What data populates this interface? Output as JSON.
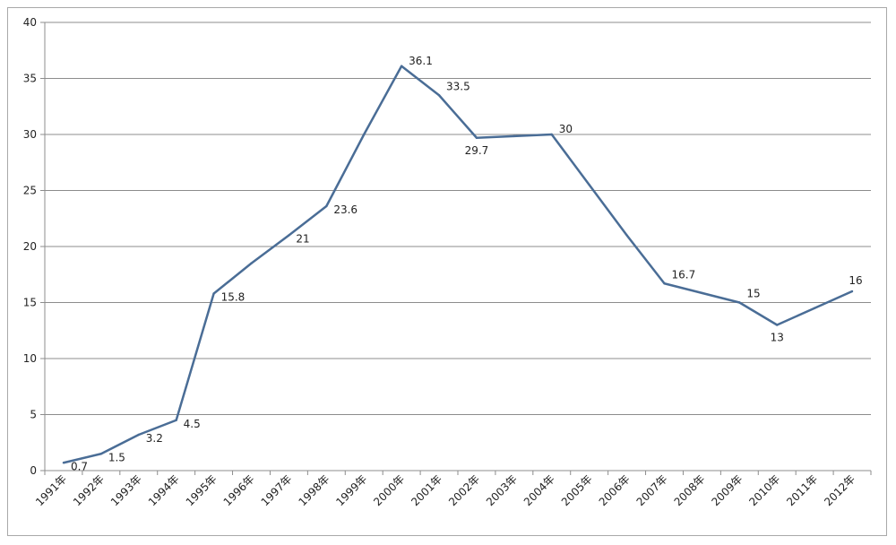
{
  "chart_data": {
    "type": "line",
    "title": "",
    "xlabel": "",
    "ylabel": "",
    "categories": [
      "1991年",
      "1992年",
      "1993年",
      "1994年",
      "1995年",
      "1996年",
      "1997年",
      "1998年",
      "1999年",
      "2000年",
      "2001年",
      "2002年",
      "2003年",
      "2004年",
      "2005年",
      "2006年",
      "2007年",
      "2008年",
      "2009年",
      "2010年",
      "2011年",
      "2012年"
    ],
    "series": [
      {
        "values": [
          0.7,
          1.5,
          3.2,
          4.5,
          15.8,
          18.5,
          21,
          23.6,
          30,
          36.1,
          33.5,
          29.7,
          29.85,
          30,
          25.5,
          21,
          16.7,
          15.85,
          15,
          13,
          14.5,
          16
        ],
        "color": "#4a6d96"
      }
    ],
    "data_labels": [
      {
        "index": 0,
        "text": "0.7"
      },
      {
        "index": 1,
        "text": "1.5"
      },
      {
        "index": 2,
        "text": "3.2"
      },
      {
        "index": 3,
        "text": "4.5"
      },
      {
        "index": 4,
        "text": "15.8"
      },
      {
        "index": 6,
        "text": "21"
      },
      {
        "index": 7,
        "text": "23.6"
      },
      {
        "index": 9,
        "text": "36.1"
      },
      {
        "index": 10,
        "text": "33.5"
      },
      {
        "index": 11,
        "text": "29.7"
      },
      {
        "index": 13,
        "text": "30"
      },
      {
        "index": 16,
        "text": "16.7"
      },
      {
        "index": 18,
        "text": "15"
      },
      {
        "index": 19,
        "text": "13"
      },
      {
        "index": 21,
        "text": "16"
      }
    ],
    "ylim": [
      0,
      40
    ],
    "yticks": [
      "0",
      "5",
      "10",
      "15",
      "20",
      "25",
      "30",
      "35",
      "40"
    ],
    "grid": true,
    "legend": "none"
  }
}
